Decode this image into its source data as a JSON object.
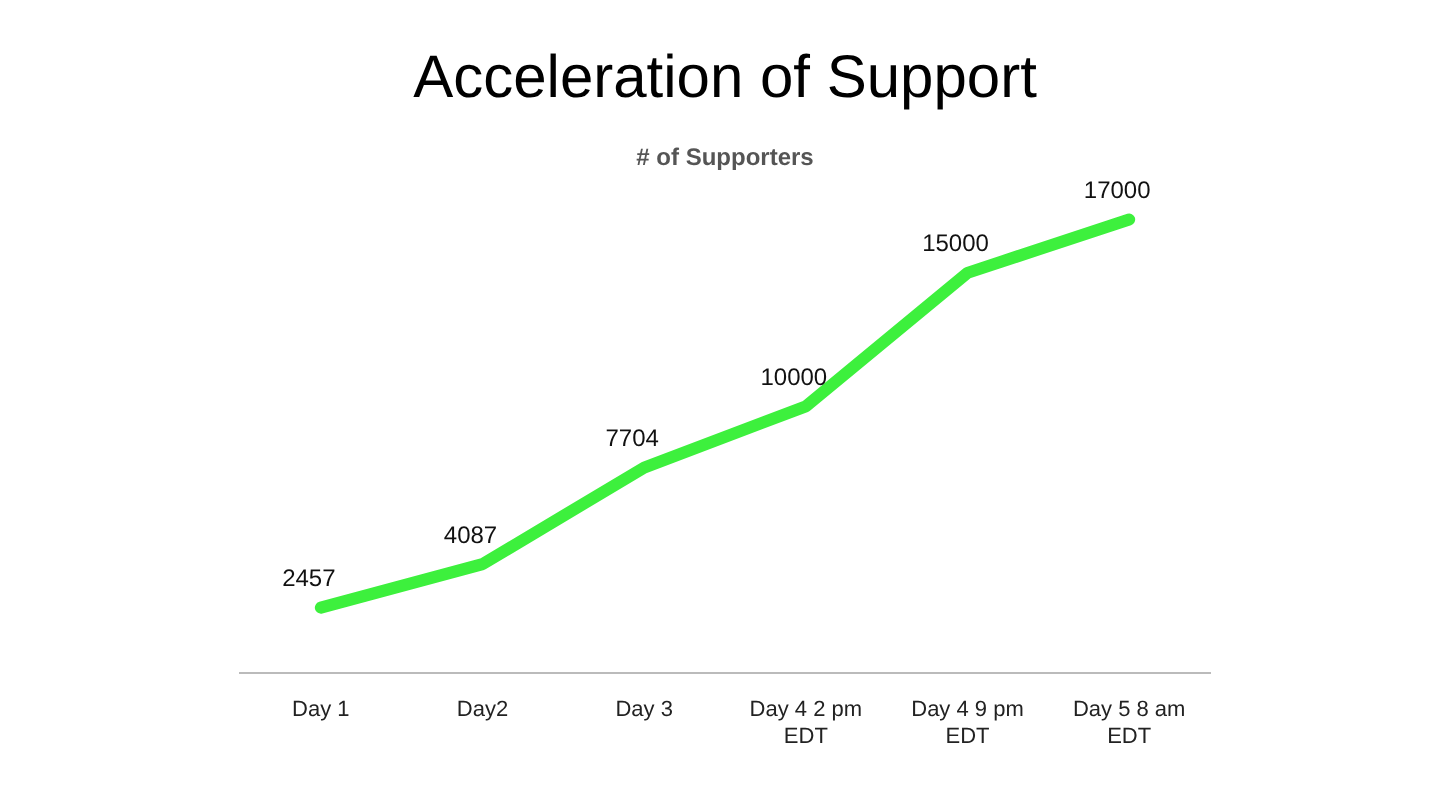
{
  "chart_data": {
    "type": "line",
    "title": "Acceleration of Support",
    "subtitle": "# of Supporters",
    "categories": [
      "Day 1",
      "Day2",
      "Day 3",
      "Day 4 2 pm\nEDT",
      "Day 4 9 pm\nEDT",
      "Day 5 8 am\nEDT"
    ],
    "series": [
      {
        "color": "#3df03d",
        "values": [
          2457,
          4087,
          7704,
          10000,
          15000,
          17000
        ]
      }
    ],
    "data_labels": true,
    "grid": false,
    "legend": false,
    "marker": "none",
    "line_style": "solid",
    "tick_labels": "x"
  }
}
